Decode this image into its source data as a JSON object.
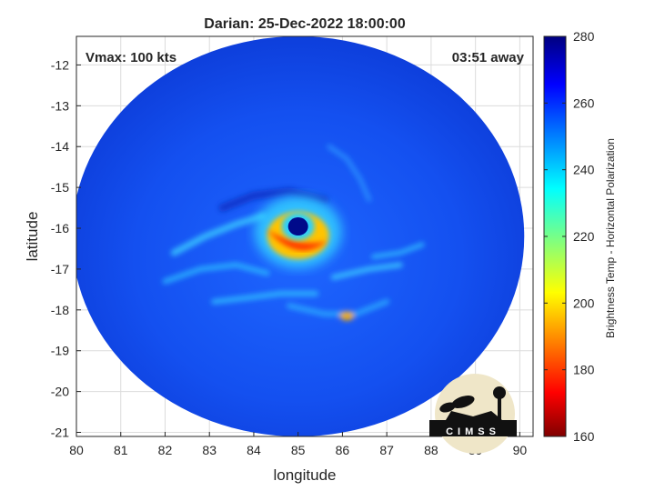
{
  "chart_data": {
    "type": "heatmap",
    "title": "Darian: 25-Dec-2022 18:00:00",
    "annotations": {
      "left": "Vmax: 100 kts",
      "right": "03:51 away"
    },
    "xlabel": "longitude",
    "ylabel": "latitude",
    "xlim": [
      80,
      90.3
    ],
    "ylim": [
      -21.1,
      -11.3
    ],
    "xticks": [
      80,
      81,
      82,
      83,
      84,
      85,
      86,
      87,
      88,
      89,
      90
    ],
    "yticks": [
      -12,
      -13,
      -14,
      -15,
      -16,
      -17,
      -18,
      -19,
      -20,
      -21
    ],
    "grid": true,
    "colorbar": {
      "label": "Brightness Temp - Horizontal Polarization",
      "min": 160,
      "max": 280,
      "ticks": [
        160,
        180,
        200,
        220,
        240,
        260,
        280
      ],
      "colormap": "jet"
    },
    "swath": {
      "center_lon": 85.0,
      "center_lat": -16.2,
      "radius_lon": 5.1,
      "radius_lat": 4.9
    },
    "storm_center": {
      "lon": 85.0,
      "lat": -16.0
    },
    "logo_text": "CIMSS"
  }
}
